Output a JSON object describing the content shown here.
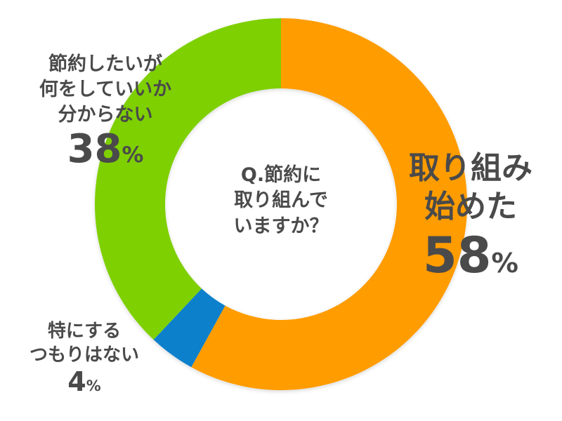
{
  "chart_data": {
    "type": "pie",
    "donut": true,
    "title": "Q.節約に取り組んでいますか？",
    "slices": [
      {
        "label": "取り組み始めた",
        "value": 58,
        "color": "#ff9c00"
      },
      {
        "label": "特にするつもりはない",
        "value": 4,
        "color": "#0a80cc"
      },
      {
        "label": "節約したいが何をしていいか分からない",
        "value": 38,
        "color": "#7ed000"
      }
    ],
    "value_labels": [
      "58",
      "4",
      "38"
    ],
    "unit": "%"
  },
  "labels": {
    "title_lines": [
      "Q.節約に",
      "取り組んで",
      "いますか？"
    ],
    "s0_lines": [
      "取り組み",
      "始めた"
    ],
    "s1_lines": [
      "特にする",
      "つもりはない"
    ],
    "s2_lines": [
      "節約したいが",
      "何をしていいか",
      "分からない"
    ]
  }
}
